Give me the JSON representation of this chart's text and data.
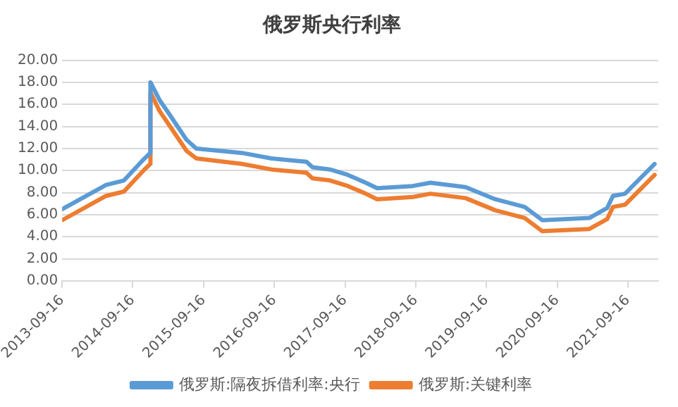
{
  "chart_data": {
    "type": "line",
    "title": "俄罗斯央行利率",
    "x": [
      "2013-09-16",
      "2014-05-01",
      "2014-08-01",
      "2014-11-10",
      "2014-12-15",
      "2014-12-16",
      "2015-02-01",
      "2015-03-20",
      "2015-06-20",
      "2015-08-10",
      "2016-04-01",
      "2016-09-01",
      "2017-03-01",
      "2017-04-01",
      "2017-07-01",
      "2017-10-01",
      "2018-01-01",
      "2018-03-01",
      "2018-09-01",
      "2018-12-01",
      "2019-06-01",
      "2019-11-01",
      "2020-04-01",
      "2020-07-01",
      "2021-03-01",
      "2021-06-01",
      "2021-07-01",
      "2021-09-01",
      "2022-02-01"
    ],
    "series": [
      {
        "name": "俄罗斯:隔夜拆借利率:央行",
        "color": "#5b9bd5",
        "values": [
          6.5,
          8.7,
          9.1,
          11.0,
          11.6,
          18.0,
          16.4,
          15.2,
          12.8,
          12.0,
          11.6,
          11.1,
          10.8,
          10.3,
          10.1,
          9.6,
          8.9,
          8.4,
          8.6,
          8.9,
          8.5,
          7.4,
          6.7,
          5.5,
          5.7,
          6.6,
          7.7,
          7.9,
          10.6
        ]
      },
      {
        "name": "俄罗斯:关键利率",
        "color": "#ed7d31",
        "values": [
          5.5,
          7.7,
          8.1,
          10.0,
          10.6,
          17.1,
          15.4,
          14.2,
          11.8,
          11.1,
          10.6,
          10.1,
          9.8,
          9.3,
          9.1,
          8.6,
          7.9,
          7.4,
          7.6,
          7.9,
          7.5,
          6.4,
          5.7,
          4.5,
          4.7,
          5.6,
          6.7,
          6.9,
          9.6
        ]
      }
    ],
    "xlim": [
      "2013-09-16",
      "2022-02-20"
    ],
    "xticks": [
      "2013-09-16",
      "2014-09-16",
      "2015-09-16",
      "2016-09-16",
      "2017-09-16",
      "2018-09-16",
      "2019-09-16",
      "2020-09-16",
      "2021-09-16"
    ],
    "ylim": [
      0,
      20
    ],
    "yticks": [
      {
        "value": 0,
        "label": "0.00"
      },
      {
        "value": 2,
        "label": "2.00"
      },
      {
        "value": 4,
        "label": "4.00"
      },
      {
        "value": 6,
        "label": "6.00"
      },
      {
        "value": 8,
        "label": "8.00"
      },
      {
        "value": 10,
        "label": "10.00"
      },
      {
        "value": 12,
        "label": "12.00"
      },
      {
        "value": 14,
        "label": "14.00"
      },
      {
        "value": 16,
        "label": "16.00"
      },
      {
        "value": 18,
        "label": "18.00"
      },
      {
        "value": 20,
        "label": "20.00"
      }
    ],
    "grid": "y",
    "legend": "bottom",
    "marker": "none",
    "line_style": "solid"
  }
}
